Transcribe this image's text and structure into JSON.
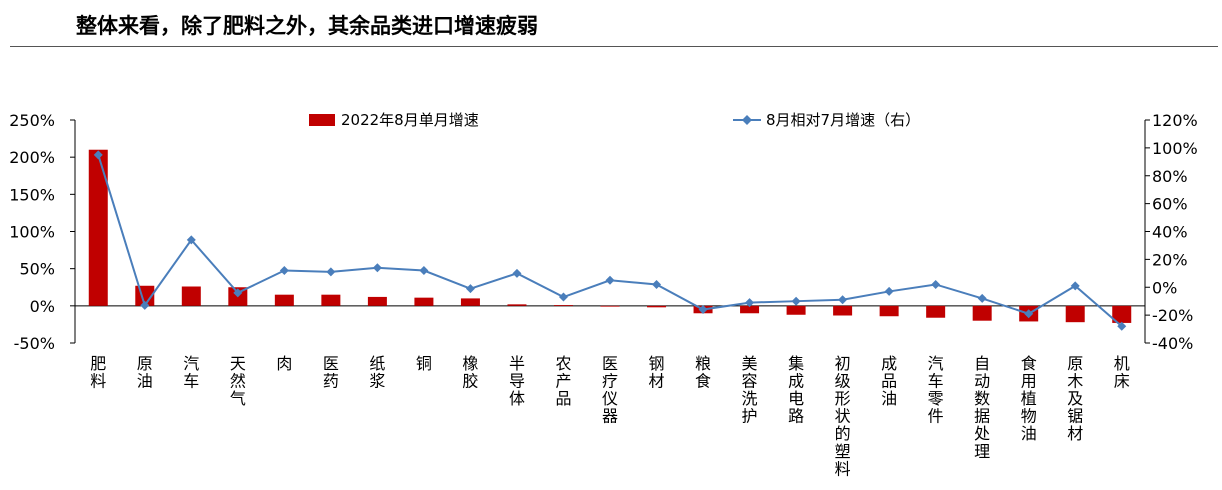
{
  "header": {
    "title": "整体来看，除了肥料之外，其余品类进口增速疲弱"
  },
  "chart_data": {
    "type": "bar",
    "categories": [
      "肥料",
      "原油",
      "汽车",
      "天然气",
      "肉",
      "医药",
      "纸浆",
      "铜",
      "橡胶",
      "半导体",
      "农产品",
      "医疗仪器",
      "钢材",
      "粮食",
      "美容洗护",
      "集成电路",
      "初级形状的塑料",
      "成品油",
      "汽车零件",
      "自动数据处理",
      "食用植物油",
      "原木及锯材",
      "机床"
    ],
    "series": [
      {
        "name": "2022年8月单月增速",
        "type": "bar",
        "axis": "left",
        "color": "#c00000",
        "values": [
          210,
          27,
          26,
          25,
          15,
          15,
          12,
          11,
          10,
          2,
          1,
          0,
          -2,
          -10,
          -10,
          -12,
          -13,
          -14,
          -16,
          -20,
          -21,
          -22,
          -23
        ]
      },
      {
        "name": "8月相对7月增速（右）",
        "type": "line",
        "axis": "right",
        "color": "#4a7ebb",
        "values": [
          95,
          -13,
          34,
          -4,
          12,
          11,
          14,
          12,
          -1,
          10,
          -7,
          5,
          2,
          -16,
          -11,
          -10,
          -9,
          -3,
          2,
          -8,
          -19,
          1,
          -28
        ]
      }
    ],
    "y_left": {
      "min": -50,
      "max": 250,
      "ticks": [
        -50,
        0,
        50,
        100,
        150,
        200,
        250
      ],
      "labels": [
        "-50%",
        "0%",
        "50%",
        "100%",
        "150%",
        "200%",
        "250%"
      ]
    },
    "y_right": {
      "min": -40,
      "max": 120,
      "ticks": [
        -40,
        -20,
        0,
        20,
        40,
        60,
        80,
        100,
        120
      ],
      "labels": [
        "-40%",
        "-20%",
        "0%",
        "20%",
        "40%",
        "60%",
        "80%",
        "100%",
        "120%"
      ]
    },
    "grid": false,
    "legend_placement": "top"
  }
}
